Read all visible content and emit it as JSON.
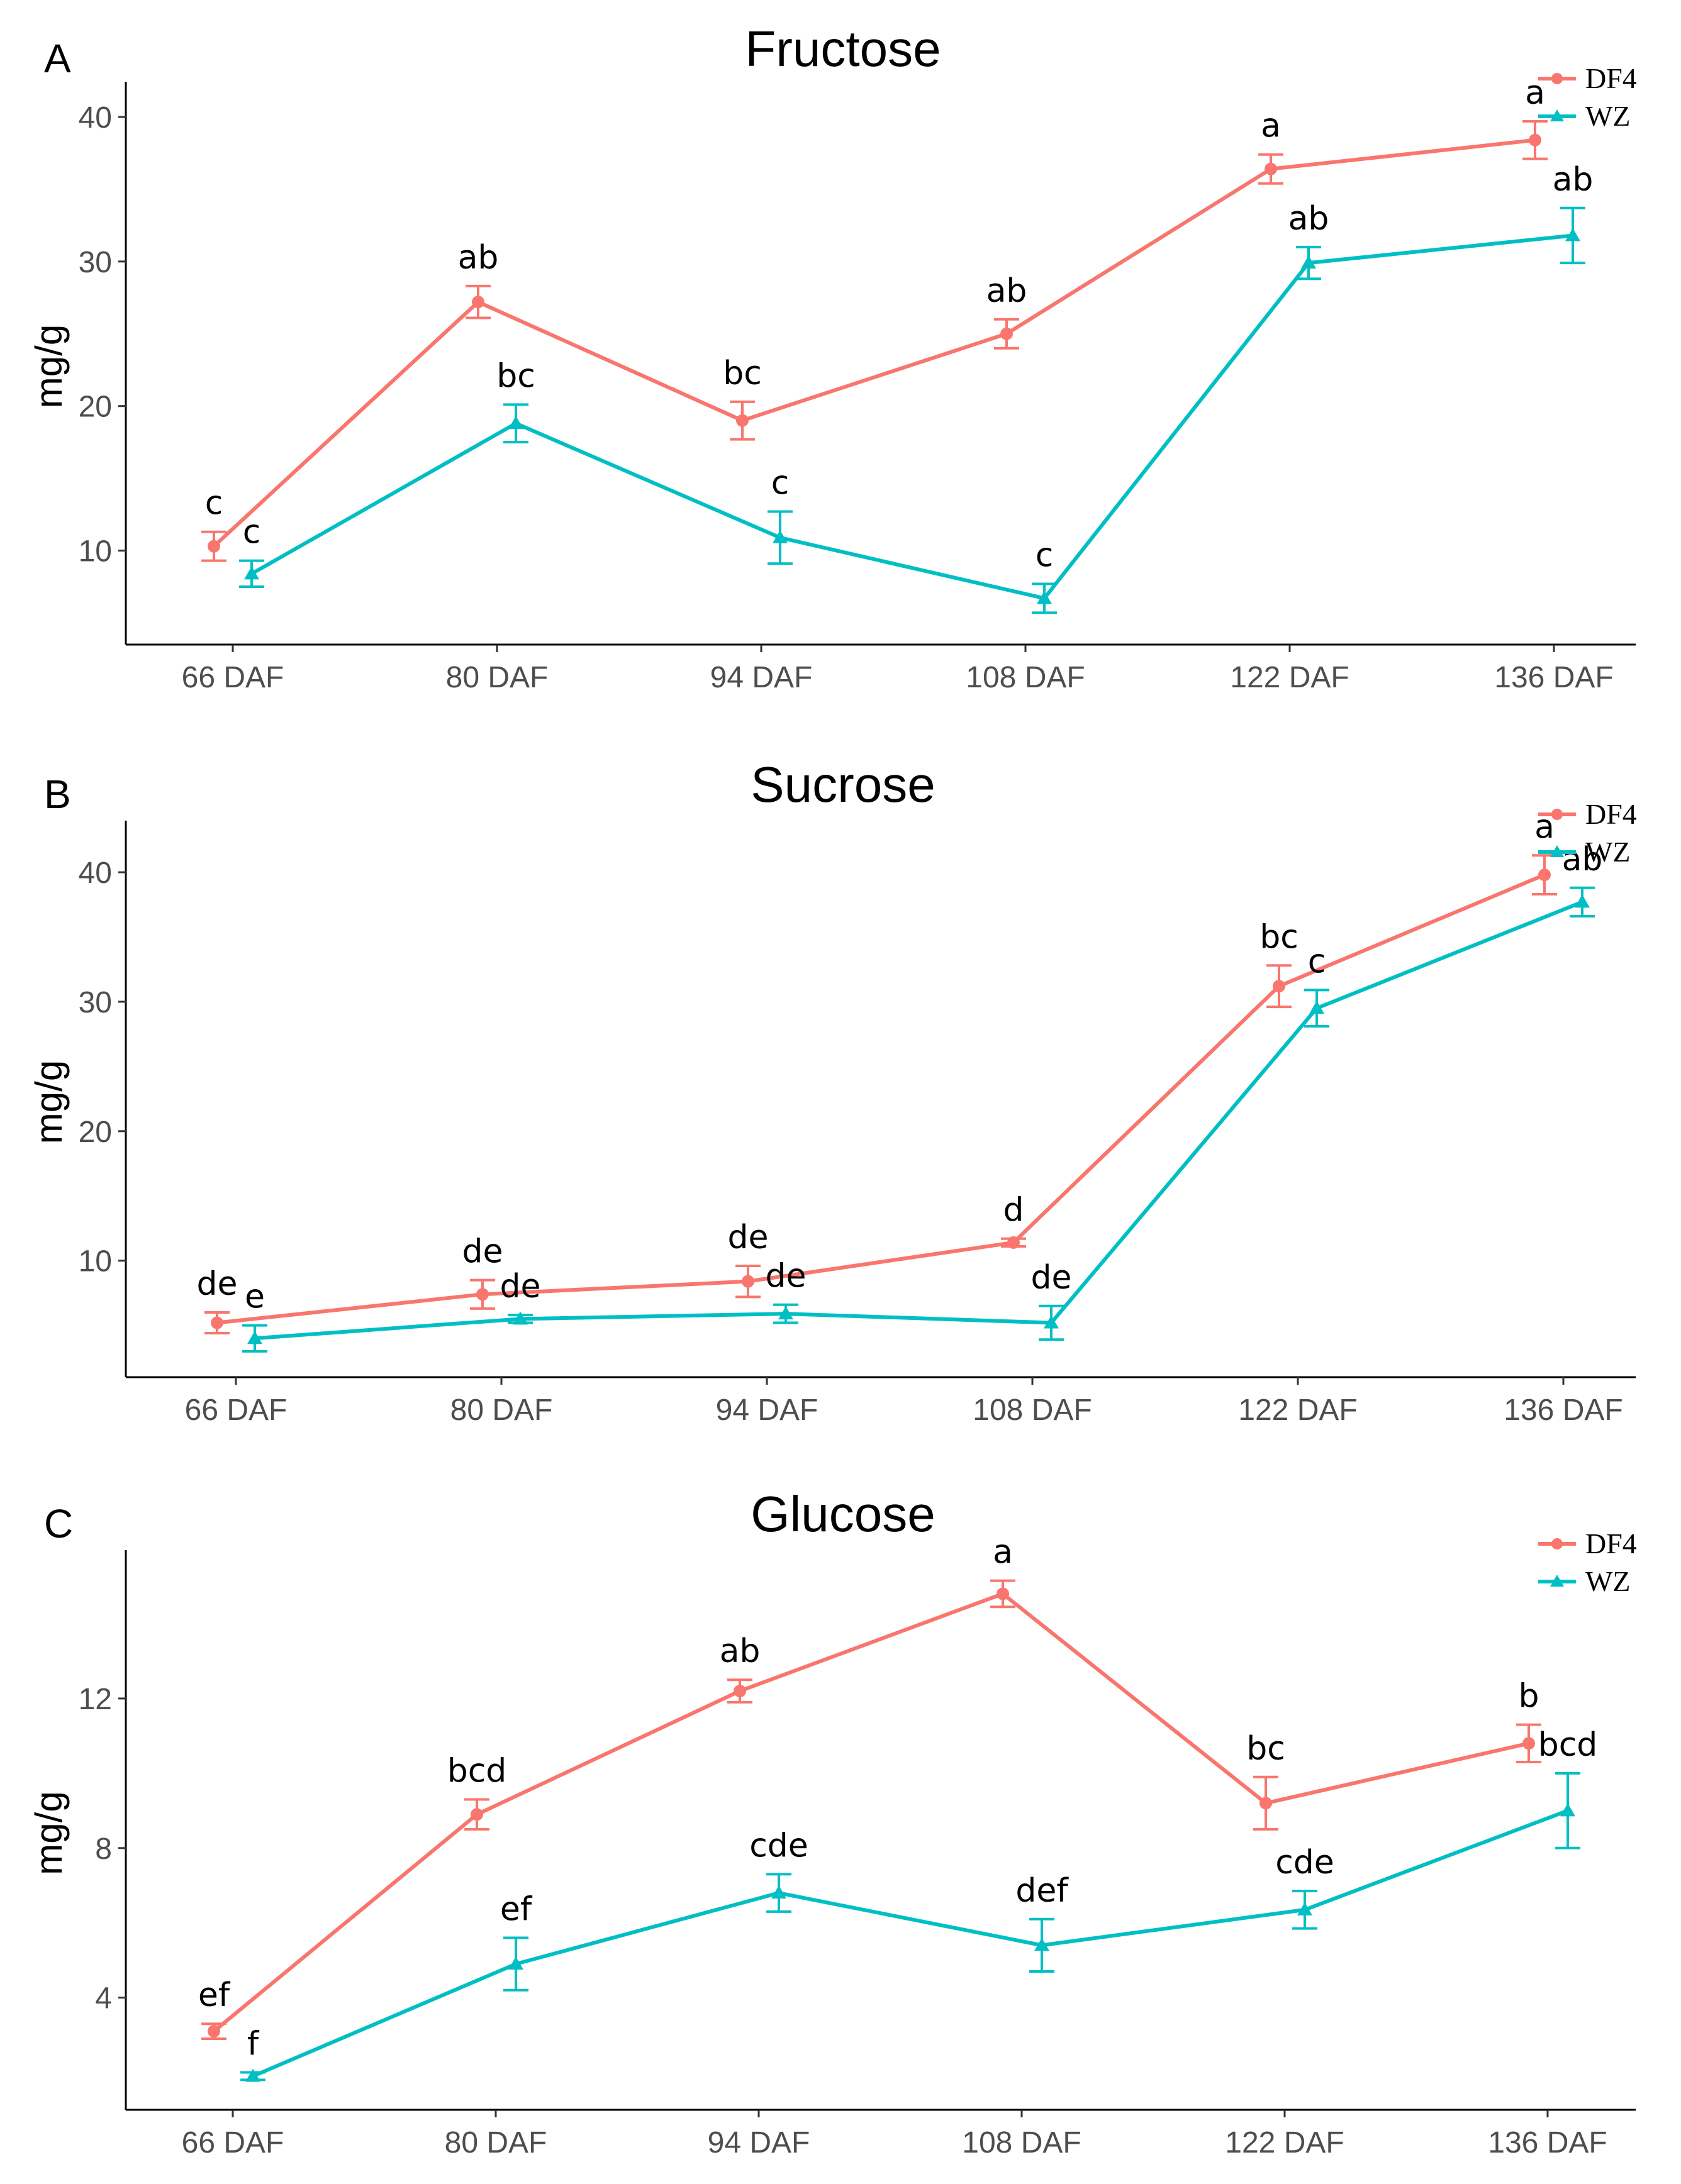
{
  "colors": {
    "DF4": "#F8766D",
    "WZ": "#00BFC4"
  },
  "chart_data": [
    {
      "type": "line",
      "panel_label": "A",
      "title": "Fructose",
      "xlabel": "",
      "ylabel": "mg/g",
      "categories": [
        "66 DAF",
        "80 DAF",
        "94 DAF",
        "108 DAF",
        "122 DAF",
        "136 DAF"
      ],
      "ylim": [
        3.5,
        42
      ],
      "yticks": [
        10,
        20,
        30,
        40
      ],
      "grid": false,
      "legend_position": "top-right",
      "series": [
        {
          "name": "DF4",
          "marker": "circle",
          "values": [
            10.3,
            27.2,
            19.0,
            25.0,
            36.4,
            38.4
          ],
          "errors": [
            1.0,
            1.1,
            1.3,
            1.0,
            1.0,
            1.3
          ],
          "labels": [
            "c",
            "ab",
            "bc",
            "ab",
            "a",
            "a"
          ]
        },
        {
          "name": "WZ",
          "marker": "triangle",
          "values": [
            8.4,
            18.8,
            10.9,
            6.7,
            29.9,
            31.8
          ],
          "errors": [
            0.9,
            1.3,
            1.8,
            1.0,
            1.1,
            1.9
          ],
          "labels": [
            "c",
            "bc",
            "c",
            "c",
            "ab",
            "ab"
          ]
        }
      ]
    },
    {
      "type": "line",
      "panel_label": "B",
      "title": "Sucrose",
      "xlabel": "",
      "ylabel": "mg/g",
      "categories": [
        "66 DAF",
        "80 DAF",
        "94 DAF",
        "108 DAF",
        "122 DAF",
        "136 DAF"
      ],
      "ylim": [
        1,
        43.5
      ],
      "yticks": [
        10,
        20,
        30,
        40
      ],
      "grid": false,
      "legend_position": "top-right",
      "series": [
        {
          "name": "DF4",
          "marker": "circle",
          "values": [
            5.2,
            7.4,
            8.4,
            11.4,
            31.2,
            39.8
          ],
          "errors": [
            0.8,
            1.1,
            1.2,
            0.3,
            1.6,
            1.5
          ],
          "labels": [
            "de",
            "de",
            "de",
            "d",
            "bc",
            "a"
          ]
        },
        {
          "name": "WZ",
          "marker": "triangle",
          "values": [
            4.0,
            5.5,
            5.9,
            5.2,
            29.5,
            37.7
          ],
          "errors": [
            1.0,
            0.3,
            0.7,
            1.3,
            1.4,
            1.1
          ],
          "labels": [
            "e",
            "de",
            "de",
            "de",
            "c",
            "ab"
          ]
        }
      ]
    },
    {
      "type": "line",
      "panel_label": "C",
      "title": "Glucose",
      "xlabel": "",
      "ylabel": "mg/g",
      "categories": [
        "66 DAF",
        "80 DAF",
        "94 DAF",
        "108 DAF",
        "122 DAF",
        "136 DAF"
      ],
      "ylim": [
        1.0,
        15.8
      ],
      "yticks": [
        4,
        8,
        12
      ],
      "grid": false,
      "legend_position": "top-right",
      "series": [
        {
          "name": "DF4",
          "marker": "circle",
          "values": [
            3.1,
            8.9,
            12.2,
            14.8,
            9.2,
            10.8
          ],
          "errors": [
            0.2,
            0.4,
            0.3,
            0.35,
            0.7,
            0.5
          ],
          "labels": [
            "ef",
            "bcd",
            "ab",
            "a",
            "bc",
            "b"
          ]
        },
        {
          "name": "WZ",
          "marker": "triangle",
          "values": [
            1.9,
            4.9,
            6.8,
            5.4,
            6.35,
            9.0
          ],
          "errors": [
            0.1,
            0.7,
            0.5,
            0.7,
            0.5,
            1.0
          ],
          "labels": [
            "f",
            "ef",
            "cde",
            "def",
            "cde",
            "bcd"
          ]
        }
      ]
    }
  ]
}
